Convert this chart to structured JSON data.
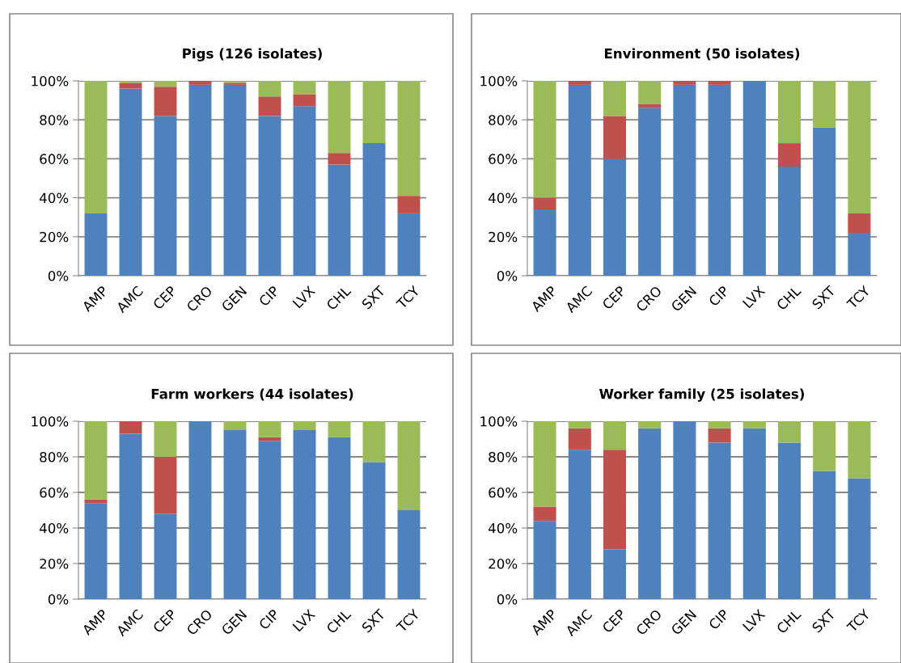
{
  "chart_data": [
    {
      "type": "bar",
      "title": "Pigs (126 isolates)",
      "stacked": true,
      "grid": "y",
      "categories": [
        "AMP",
        "AMC",
        "CEP",
        "CRO",
        "GEN",
        "CIP",
        "LVX",
        "CHL",
        "SXT",
        "TCY"
      ],
      "ylim": [
        0,
        100
      ],
      "yticks": [
        {
          "value": 0,
          "label": "0%"
        },
        {
          "value": 20,
          "label": "20%"
        },
        {
          "value": 40,
          "label": "40%"
        },
        {
          "value": 60,
          "label": "60%"
        },
        {
          "value": 80,
          "label": "80%"
        },
        {
          "value": 100,
          "label": "100%"
        }
      ],
      "series": [
        {
          "color": "#4f81bd",
          "values": [
            32,
            96,
            82,
            98,
            98,
            82,
            87,
            57,
            68,
            32
          ]
        },
        {
          "color": "#c0504d",
          "values": [
            0,
            3,
            15,
            2,
            1,
            10,
            6,
            6,
            0,
            9
          ]
        },
        {
          "color": "#9bbb59",
          "values": [
            68,
            1,
            3,
            0,
            1,
            8,
            7,
            37,
            32,
            59
          ]
        }
      ]
    },
    {
      "type": "bar",
      "title": "Environment (50 isolates)",
      "stacked": true,
      "grid": "y",
      "categories": [
        "AMP",
        "AMC",
        "CEP",
        "CRO",
        "GEN",
        "CIP",
        "LVX",
        "CHL",
        "SXT",
        "TCY"
      ],
      "ylim": [
        0,
        100
      ],
      "yticks": [
        {
          "value": 0,
          "label": "0%"
        },
        {
          "value": 20,
          "label": "20%"
        },
        {
          "value": 40,
          "label": "40%"
        },
        {
          "value": 60,
          "label": "60%"
        },
        {
          "value": 80,
          "label": "80%"
        },
        {
          "value": 100,
          "label": "100%"
        }
      ],
      "series": [
        {
          "color": "#4f81bd",
          "values": [
            34,
            98,
            60,
            86,
            98,
            98,
            100,
            56,
            76,
            22
          ]
        },
        {
          "color": "#c0504d",
          "values": [
            6,
            2,
            22,
            2,
            2,
            2,
            0,
            12,
            0,
            10
          ]
        },
        {
          "color": "#9bbb59",
          "values": [
            60,
            0,
            18,
            12,
            0,
            0,
            0,
            32,
            24,
            68
          ]
        }
      ]
    },
    {
      "type": "bar",
      "title": "Farm workers (44 isolates)",
      "stacked": true,
      "grid": "y",
      "categories": [
        "AMP",
        "AMC",
        "CEP",
        "CRO",
        "GEN",
        "CIP",
        "LVX",
        "CHL",
        "SXT",
        "TCY"
      ],
      "ylim": [
        0,
        100
      ],
      "yticks": [
        {
          "value": 0,
          "label": "0%"
        },
        {
          "value": 20,
          "label": "20%"
        },
        {
          "value": 40,
          "label": "40%"
        },
        {
          "value": 60,
          "label": "60%"
        },
        {
          "value": 80,
          "label": "80%"
        },
        {
          "value": 100,
          "label": "100%"
        }
      ],
      "series": [
        {
          "color": "#4f81bd",
          "values": [
            54,
            93,
            48,
            100,
            95,
            89,
            95,
            91,
            77,
            50
          ]
        },
        {
          "color": "#c0504d",
          "values": [
            2,
            7,
            32,
            0,
            0,
            2,
            0,
            0,
            0,
            0
          ]
        },
        {
          "color": "#9bbb59",
          "values": [
            44,
            0,
            20,
            0,
            5,
            9,
            5,
            9,
            23,
            50
          ]
        }
      ]
    },
    {
      "type": "bar",
      "title": "Worker family (25 isolates)",
      "stacked": true,
      "grid": "y",
      "categories": [
        "AMP",
        "AMC",
        "CEP",
        "CRO",
        "GEN",
        "CIP",
        "LVX",
        "CHL",
        "SXT",
        "TCY"
      ],
      "ylim": [
        0,
        100
      ],
      "yticks": [
        {
          "value": 0,
          "label": "0%"
        },
        {
          "value": 20,
          "label": "20%"
        },
        {
          "value": 40,
          "label": "40%"
        },
        {
          "value": 60,
          "label": "60%"
        },
        {
          "value": 80,
          "label": "80%"
        },
        {
          "value": 100,
          "label": "100%"
        }
      ],
      "series": [
        {
          "color": "#4f81bd",
          "values": [
            44,
            84,
            28,
            96,
            100,
            88,
            96,
            88,
            72,
            68
          ]
        },
        {
          "color": "#c0504d",
          "values": [
            8,
            12,
            56,
            0,
            0,
            8,
            0,
            0,
            0,
            0
          ]
        },
        {
          "color": "#9bbb59",
          "values": [
            48,
            4,
            16,
            4,
            0,
            4,
            4,
            12,
            28,
            32
          ]
        }
      ]
    }
  ]
}
